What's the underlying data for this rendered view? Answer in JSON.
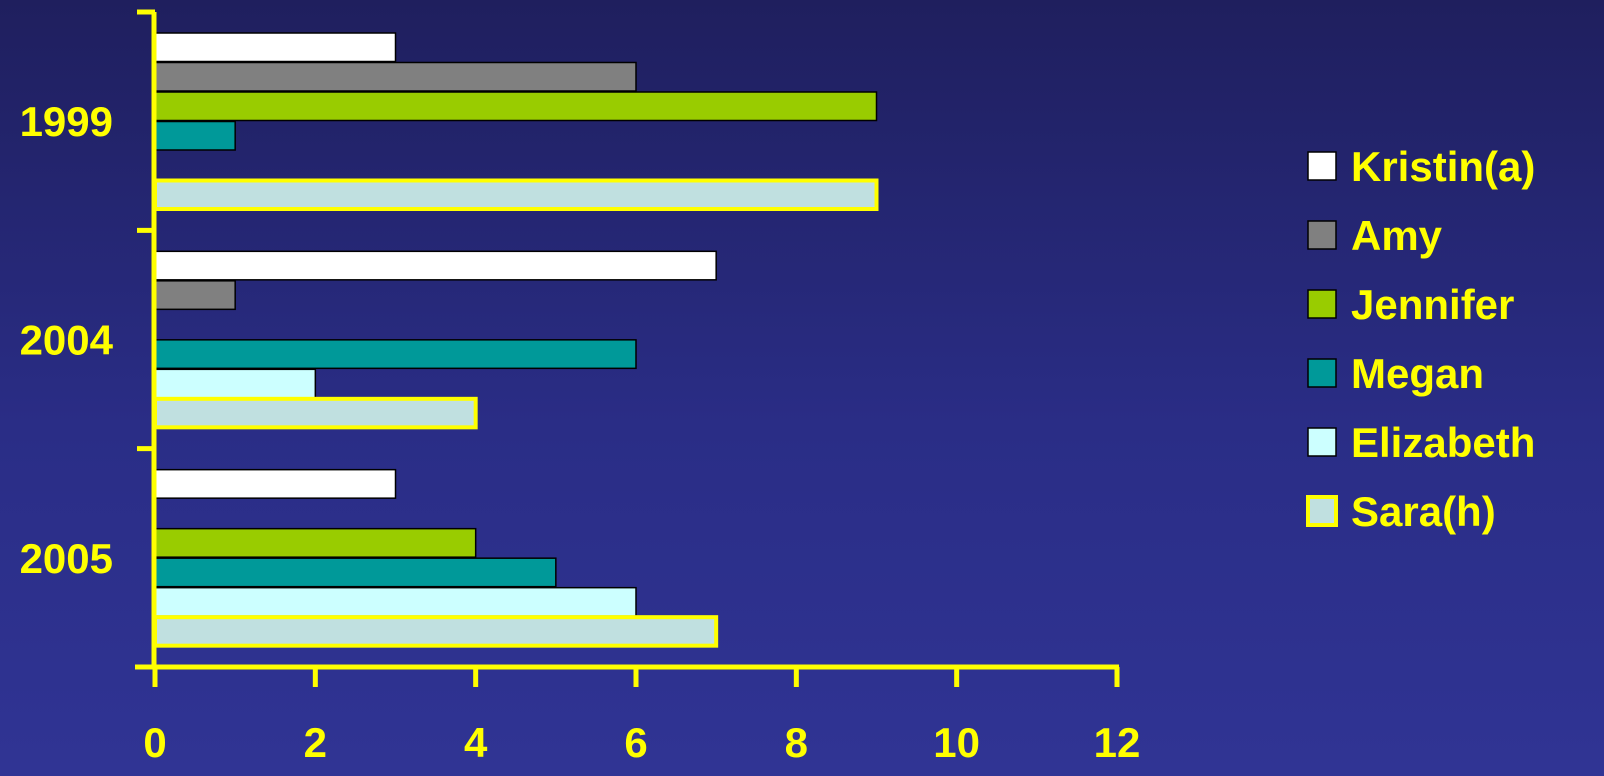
{
  "chart_data": {
    "type": "bar",
    "orientation": "horizontal",
    "categories": [
      "1999",
      "2004",
      "2005"
    ],
    "series": [
      {
        "name": "Kristin(a)",
        "values": [
          3,
          7,
          3
        ],
        "color": "#ffffff"
      },
      {
        "name": "Amy",
        "values": [
          6,
          1,
          0
        ],
        "color": "#808080"
      },
      {
        "name": "Jennifer",
        "values": [
          9,
          0,
          4
        ],
        "color": "#99cc00"
      },
      {
        "name": "Megan",
        "values": [
          1,
          6,
          5
        ],
        "color": "#009999"
      },
      {
        "name": "Elizabeth",
        "values": [
          0,
          2,
          6
        ],
        "color": "#ccffff"
      },
      {
        "name": "Sara(h)",
        "values": [
          9,
          4,
          7
        ],
        "color": "#c0e0e0",
        "border_color": "#ffff00"
      }
    ],
    "xlim": [
      0,
      12
    ],
    "xticks": [
      "0",
      "2",
      "4",
      "6",
      "8",
      "10",
      "12"
    ],
    "title": "",
    "xlabel": "",
    "ylabel": "",
    "grid": false,
    "legend_position": "right",
    "axis_color": "#ffff00",
    "label_color": "#ffff00"
  }
}
